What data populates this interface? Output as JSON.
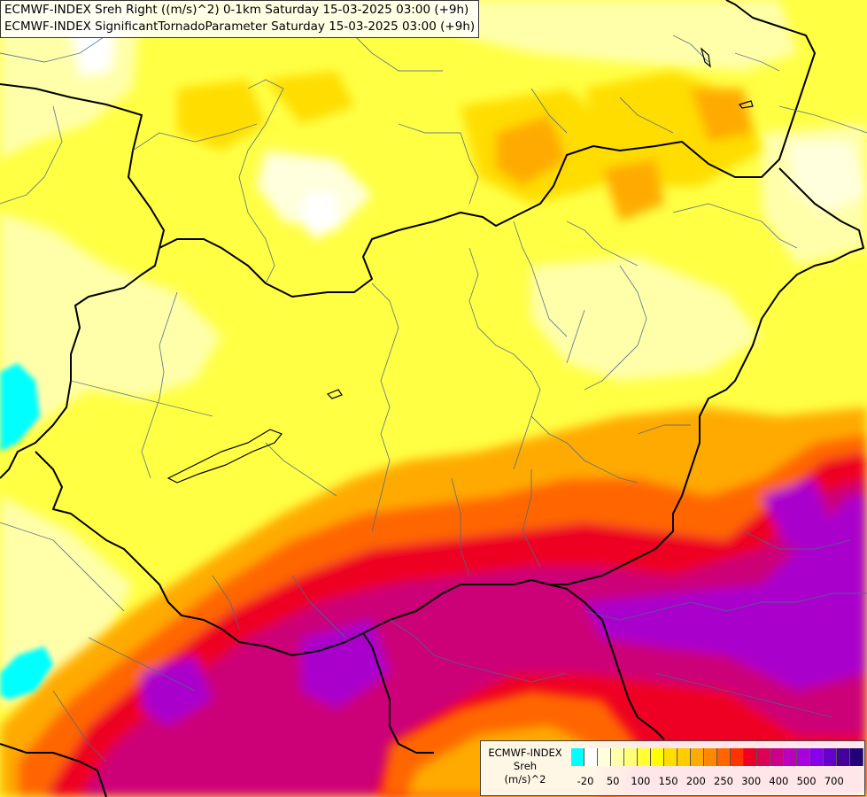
{
  "header": {
    "line1": "ECMWF-INDEX Sreh Right ((m/s)^2) 0-1km Saturday 15-03-2025 03:00 (+9h)",
    "line2": "ECMWF-INDEX SignificantTornadoParameter Saturday 15-03-2025 03:00 (+9h)"
  },
  "legend": {
    "title_lines": [
      "ECMWF-INDEX",
      "Sreh",
      "(m/s)^2"
    ],
    "tick_labels": [
      "-20",
      "50",
      "100",
      "150",
      "200",
      "250",
      "300",
      "400",
      "500",
      "700"
    ],
    "colors": [
      "#00ffff",
      "#ffffff",
      "#ffffdd",
      "#ffffaa",
      "#ffff77",
      "#ffff33",
      "#ffff00",
      "#ffdd00",
      "#ffcc00",
      "#ffaa00",
      "#ff8800",
      "#ff6600",
      "#ff3300",
      "#ee0022",
      "#dd0055",
      "#cc0088",
      "#bb00bb",
      "#aa00dd",
      "#8800ee",
      "#6600cc",
      "#440099",
      "#220077"
    ]
  },
  "map": {
    "field_colors": {
      "base": "#ffff44",
      "pale": "#ffffaa",
      "light": "#ffffdd",
      "orange": "#ffaa00",
      "deep_orange": "#ff6600",
      "red": "#ee0022",
      "magenta": "#cc0077",
      "purple": "#aa00cc",
      "negative": "#00ffff"
    }
  }
}
